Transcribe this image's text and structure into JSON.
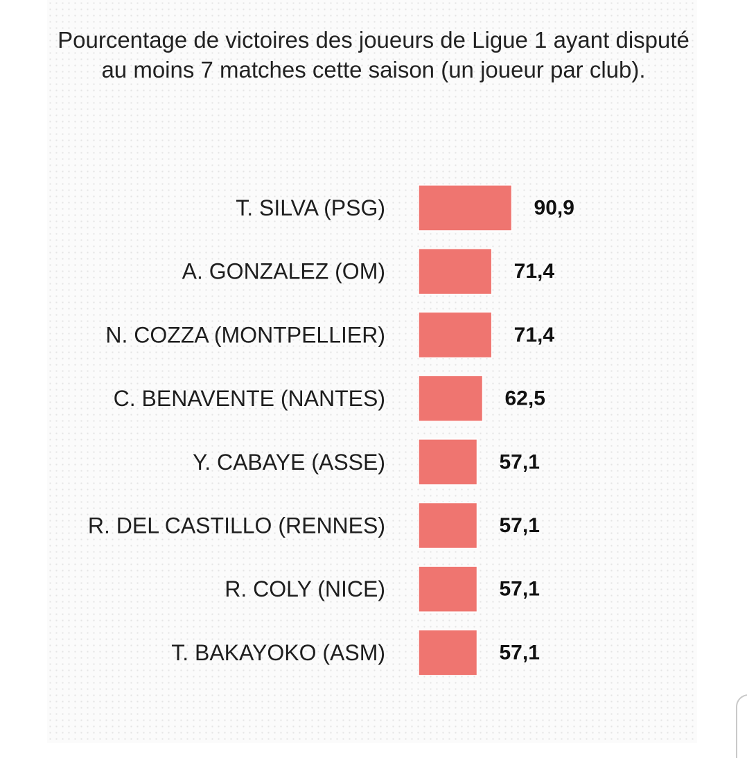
{
  "chart_data": {
    "type": "bar",
    "orientation": "horizontal",
    "title": "Pourcentage de victoires des joueurs de Ligue 1 ayant disputé au moins 7 matches cette saison (un joueur par club).",
    "categories": [
      "T. SILVA (PSG)",
      "A. GONZALEZ (OM)",
      "N. COZZA (MONTPELLIER)",
      "C. BENAVENTE (NANTES)",
      "Y. CABAYE (ASSE)",
      "R. DEL CASTILLO (RENNES)",
      "R. COLY (NICE)",
      "T. BAKAYOKO (ASM)"
    ],
    "values": [
      90.9,
      71.4,
      71.4,
      62.5,
      57.1,
      57.1,
      57.1,
      57.1
    ],
    "value_labels": [
      "90,9",
      "71,4",
      "71,4",
      "62,5",
      "57,1",
      "57,1",
      "57,1",
      "57,1"
    ],
    "xlabel": "",
    "ylabel": "",
    "grid": false,
    "bar_color": "#ef7570"
  }
}
